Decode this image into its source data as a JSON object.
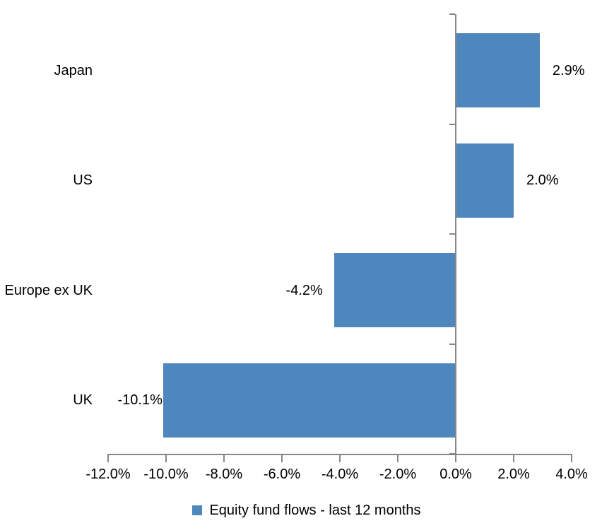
{
  "chart_data": {
    "type": "bar",
    "orientation": "horizontal",
    "title": "",
    "xlabel": "",
    "ylabel": "",
    "categories": [
      "Japan",
      "US",
      "Europe ex UK",
      "UK"
    ],
    "values": [
      2.9,
      2.0,
      -4.2,
      -10.1
    ],
    "data_labels": [
      "2.9%",
      "2.0%",
      "-4.2%",
      "-10.1%"
    ],
    "series_name": "Equity fund flows - last 12 months",
    "xlim": [
      -12,
      4
    ],
    "x_tick_step": 2,
    "x_tick_labels": [
      "-12.0%",
      "-10.0%",
      "-8.0%",
      "-6.0%",
      "-4.0%",
      "-2.0%",
      "0.0%",
      "2.0%",
      "4.0%"
    ],
    "grid": false,
    "legend_position": "bottom",
    "colors": {
      "bar": "#4E87BE",
      "axis": "#878787",
      "text": "#000000",
      "background": "#FFFFFF"
    }
  }
}
